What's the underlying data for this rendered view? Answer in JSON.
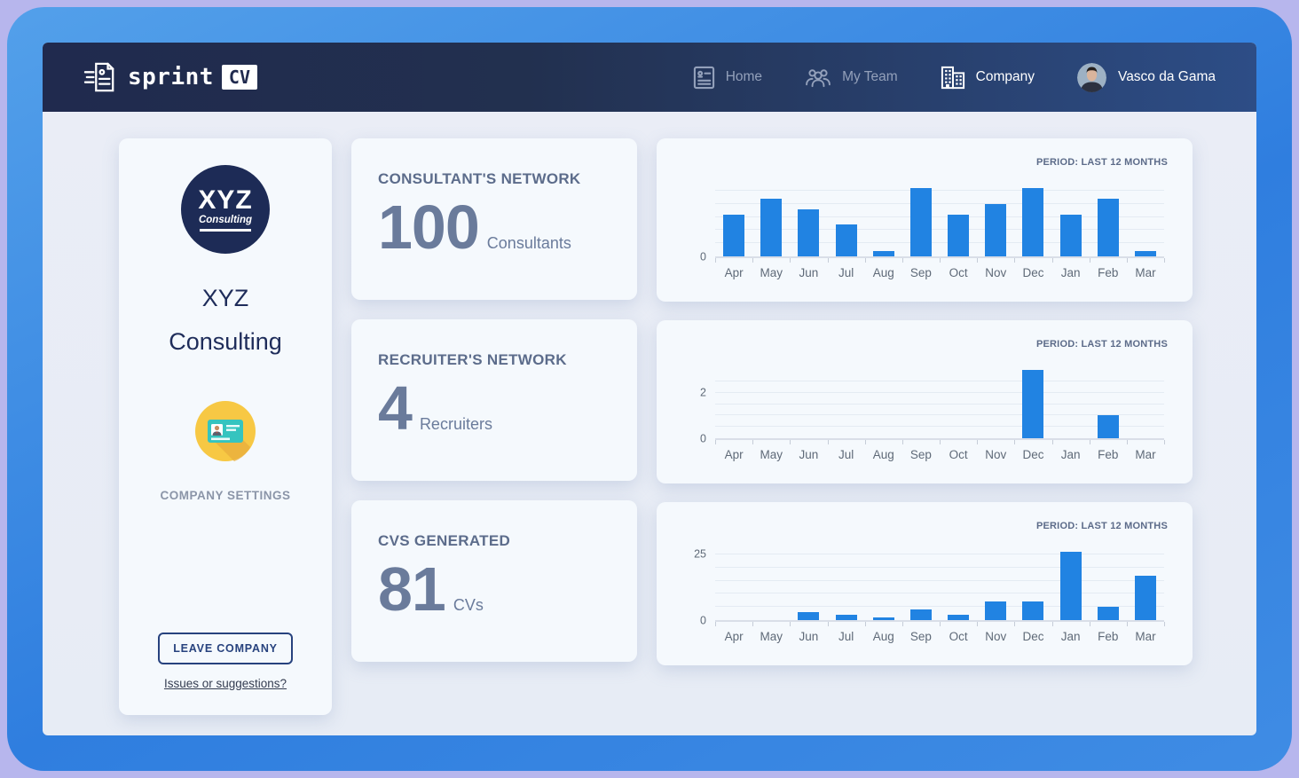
{
  "navbar": {
    "logo": {
      "text": "sprint",
      "badge": "CV"
    },
    "items": [
      {
        "label": "Home",
        "active": false
      },
      {
        "label": "My Team",
        "active": false
      },
      {
        "label": "Company",
        "active": true
      }
    ],
    "user": {
      "name": "Vasco da Gama"
    }
  },
  "sidebar": {
    "logo": {
      "line1": "XYZ",
      "line2": "Consulting"
    },
    "company_name_line1": "XYZ",
    "company_name_line2": "Consulting",
    "settings_label": "COMPANY SETTINGS",
    "leave_button_label": "LEAVE COMPANY",
    "issues_link_label": "Issues or suggestions?"
  },
  "stats": [
    {
      "title": "CONSULTANT'S NETWORK",
      "value": "100",
      "unit": "Consultants"
    },
    {
      "title": "RECRUITER'S NETWORK",
      "value": "4",
      "unit": "Recruiters"
    },
    {
      "title": "CVS GENERATED",
      "value": "81",
      "unit": "CVs"
    }
  ],
  "chart_data": [
    {
      "type": "bar",
      "title": "PERIOD: LAST 12 MONTHS",
      "categories": [
        "Apr",
        "May",
        "Jun",
        "Jul",
        "Aug",
        "Sep",
        "Oct",
        "Nov",
        "Dec",
        "Jan",
        "Feb",
        "Mar"
      ],
      "values": [
        8,
        11,
        9,
        6,
        1,
        13,
        8,
        10,
        13,
        8,
        11,
        1
      ],
      "ylim": [
        0,
        13
      ],
      "yticks": [
        {
          "label": "0",
          "value": 0
        }
      ],
      "gridlines": [
        2.5,
        5,
        7.5,
        10,
        12.5
      ],
      "bar_color": "#2183e2",
      "legend": "none",
      "xlabel": "",
      "ylabel": ""
    },
    {
      "type": "bar",
      "title": "PERIOD: LAST 12 MONTHS",
      "categories": [
        "Apr",
        "May",
        "Jun",
        "Jul",
        "Aug",
        "Sep",
        "Oct",
        "Nov",
        "Dec",
        "Jan",
        "Feb",
        "Mar"
      ],
      "values": [
        0,
        0,
        0,
        0,
        0,
        0,
        0,
        0,
        3,
        0,
        1,
        0
      ],
      "ylim": [
        0,
        3
      ],
      "yticks": [
        {
          "label": "2",
          "value": 2
        },
        {
          "label": "0",
          "value": 0
        }
      ],
      "gridlines": [
        0.5,
        1,
        1.5,
        2,
        2.5
      ],
      "bar_color": "#2183e2",
      "legend": "none",
      "xlabel": "",
      "ylabel": ""
    },
    {
      "type": "bar",
      "title": "PERIOD: LAST 12 MONTHS",
      "categories": [
        "Apr",
        "May",
        "Jun",
        "Jul",
        "Aug",
        "Sep",
        "Oct",
        "Nov",
        "Dec",
        "Jan",
        "Feb",
        "Mar"
      ],
      "values": [
        0,
        0,
        3,
        2,
        1,
        4,
        2,
        7,
        7,
        26,
        5,
        17
      ],
      "ylim": [
        0,
        26
      ],
      "yticks": [
        {
          "label": "25",
          "value": 25
        },
        {
          "label": "0",
          "value": 0
        }
      ],
      "gridlines": [
        5,
        10,
        15,
        20,
        25
      ],
      "bar_color": "#2183e2",
      "legend": "none",
      "xlabel": "",
      "ylabel": ""
    }
  ],
  "colors": {
    "brand_navy": "#1d2b56",
    "navbar_left": "#202a4e",
    "navbar_right": "#2d4d86",
    "bar_blue": "#2183e2",
    "frame_blue": "#2f7edf",
    "page_lavender": "#b7b6ed",
    "card_bg": "#f5f9fd",
    "stat_text": "#6a7b9b",
    "settings_yellow": "#f7c844",
    "settings_teal": "#35c4bf"
  }
}
